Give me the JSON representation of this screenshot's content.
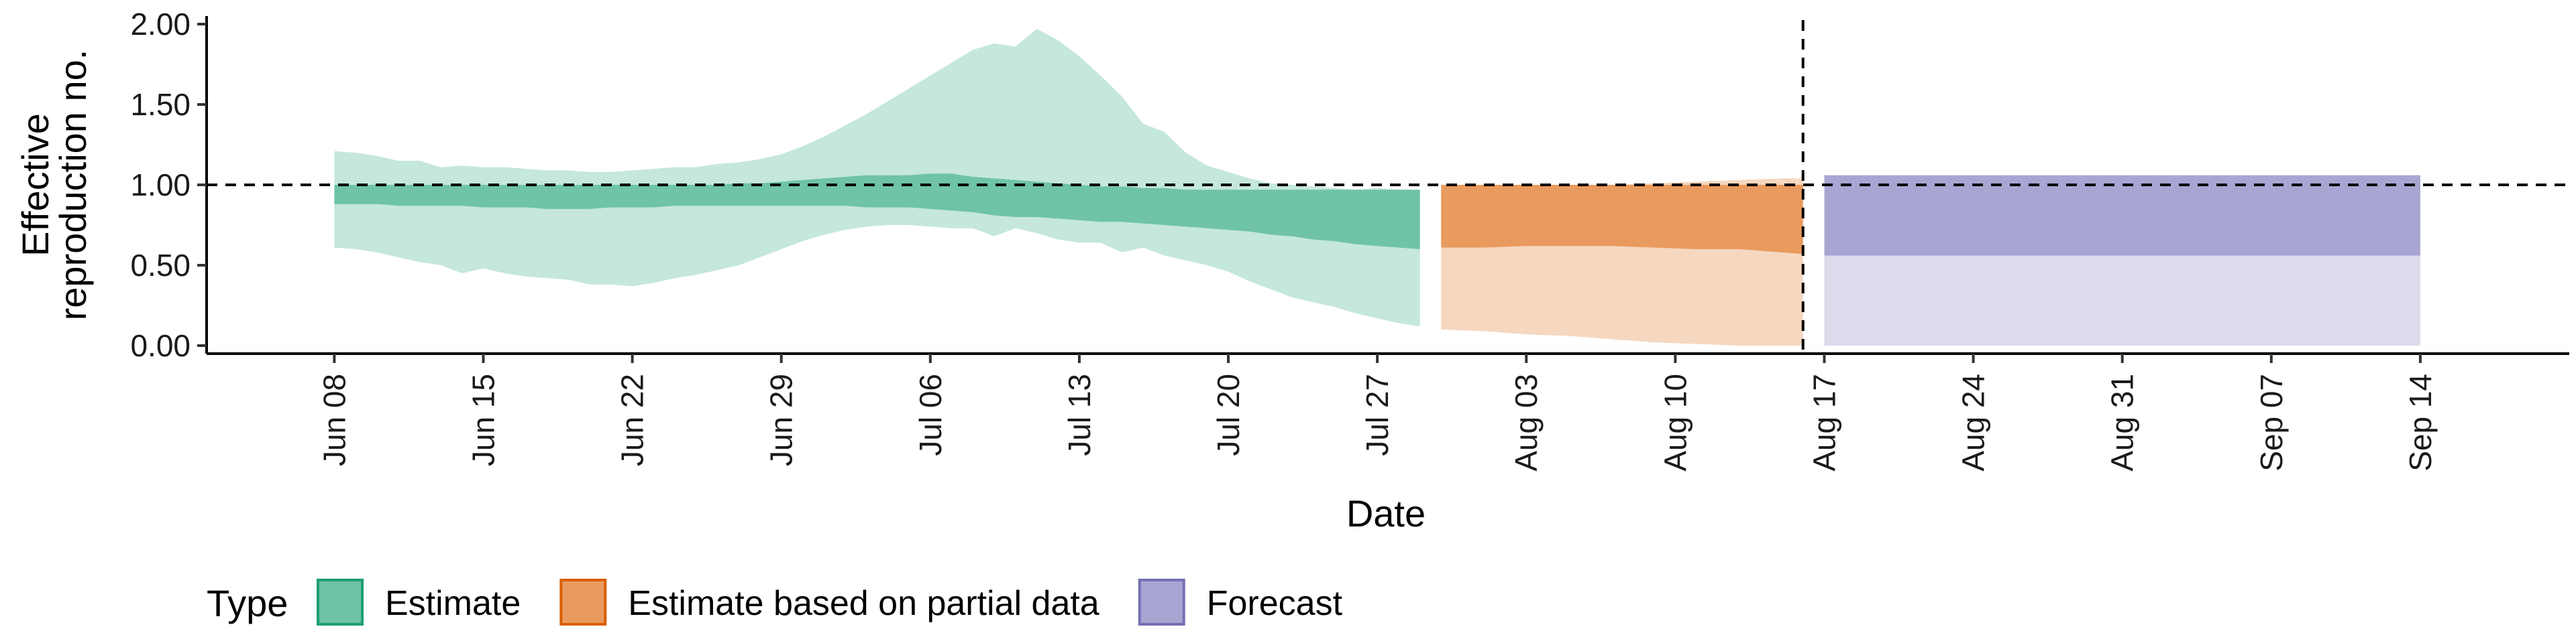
{
  "chart_data": {
    "type": "area",
    "xlabel": "Date",
    "ylabel_lines": [
      "Effective",
      "reproduction no."
    ],
    "ylim": [
      -0.05,
      2.05
    ],
    "xlim": [
      "2020-06-02",
      "2020-09-21"
    ],
    "y_ticks": [
      0,
      0.5,
      1,
      1.5,
      2
    ],
    "y_tick_labels": [
      "0.00",
      "0.50",
      "1.00",
      "1.50",
      "2.00"
    ],
    "x_ticks": [
      "2020-06-08",
      "2020-06-15",
      "2020-06-22",
      "2020-06-29",
      "2020-07-06",
      "2020-07-13",
      "2020-07-20",
      "2020-07-27",
      "2020-08-03",
      "2020-08-10",
      "2020-08-17",
      "2020-08-24",
      "2020-08-31",
      "2020-09-07",
      "2020-09-14"
    ],
    "x_tick_labels": [
      "Jun 08",
      "Jun 15",
      "Jun 22",
      "Jun 29",
      "Jul 06",
      "Jul 13",
      "Jul 20",
      "Jul 27",
      "Aug 03",
      "Aug 10",
      "Aug 17",
      "Aug 24",
      "Aug 31",
      "Sep 07",
      "Sep 14"
    ],
    "hline": 1.0,
    "vline": "2020-08-16",
    "grid": false,
    "legend": {
      "title": "Type",
      "position": "bottom-left",
      "items": [
        {
          "label": "Estimate",
          "fill": "#6fc3a6",
          "border": "#1b9e77"
        },
        {
          "label": "Estimate based on partial data",
          "fill": "#e99a5e",
          "border": "#d95f02"
        },
        {
          "label": "Forecast",
          "fill": "#a9a5d3",
          "border": "#7570b3"
        }
      ]
    },
    "series": [
      {
        "name": "Estimate",
        "outer_color": "#c5e7dc",
        "inner_color": "#6fc3a6",
        "x": [
          "2020-06-08",
          "2020-06-09",
          "2020-06-10",
          "2020-06-11",
          "2020-06-12",
          "2020-06-13",
          "2020-06-14",
          "2020-06-15",
          "2020-06-16",
          "2020-06-17",
          "2020-06-18",
          "2020-06-19",
          "2020-06-20",
          "2020-06-21",
          "2020-06-22",
          "2020-06-23",
          "2020-06-24",
          "2020-06-25",
          "2020-06-26",
          "2020-06-27",
          "2020-06-28",
          "2020-06-29",
          "2020-06-30",
          "2020-07-01",
          "2020-07-02",
          "2020-07-03",
          "2020-07-04",
          "2020-07-05",
          "2020-07-06",
          "2020-07-07",
          "2020-07-08",
          "2020-07-09",
          "2020-07-10",
          "2020-07-11",
          "2020-07-12",
          "2020-07-13",
          "2020-07-14",
          "2020-07-15",
          "2020-07-16",
          "2020-07-17",
          "2020-07-18",
          "2020-07-19",
          "2020-07-20",
          "2020-07-21",
          "2020-07-22",
          "2020-07-23",
          "2020-07-24",
          "2020-07-25",
          "2020-07-26",
          "2020-07-27",
          "2020-07-28",
          "2020-07-29"
        ],
        "upper_outer": [
          1.21,
          1.2,
          1.18,
          1.15,
          1.15,
          1.11,
          1.12,
          1.11,
          1.11,
          1.1,
          1.09,
          1.09,
          1.08,
          1.08,
          1.09,
          1.1,
          1.11,
          1.11,
          1.13,
          1.14,
          1.16,
          1.19,
          1.24,
          1.3,
          1.37,
          1.44,
          1.52,
          1.6,
          1.68,
          1.76,
          1.84,
          1.88,
          1.86,
          1.97,
          1.9,
          1.8,
          1.68,
          1.55,
          1.38,
          1.33,
          1.2,
          1.12,
          1.08,
          1.04,
          1.01,
          1.0,
          0.99,
          0.98,
          0.97,
          0.98,
          0.97,
          0.97
        ],
        "upper_inner": [
          1.0,
          1.0,
          1.0,
          1.0,
          1.0,
          1.0,
          1.0,
          1.0,
          1.0,
          1.0,
          1.0,
          1.0,
          1.0,
          1.0,
          1.0,
          1.0,
          1.0,
          1.0,
          1.0,
          1.01,
          1.01,
          1.02,
          1.03,
          1.04,
          1.05,
          1.06,
          1.06,
          1.06,
          1.07,
          1.07,
          1.05,
          1.04,
          1.03,
          1.02,
          1.01,
          1.0,
          0.99,
          0.99,
          0.98,
          0.98,
          0.97,
          0.97,
          0.97,
          0.97,
          0.97,
          0.97,
          0.97,
          0.97,
          0.97,
          0.97,
          0.97,
          0.97
        ],
        "lower_inner": [
          0.88,
          0.88,
          0.88,
          0.87,
          0.87,
          0.87,
          0.87,
          0.86,
          0.86,
          0.86,
          0.85,
          0.85,
          0.85,
          0.86,
          0.86,
          0.86,
          0.87,
          0.87,
          0.87,
          0.87,
          0.87,
          0.87,
          0.87,
          0.87,
          0.87,
          0.86,
          0.86,
          0.86,
          0.85,
          0.84,
          0.83,
          0.81,
          0.8,
          0.8,
          0.79,
          0.78,
          0.77,
          0.77,
          0.76,
          0.75,
          0.74,
          0.73,
          0.72,
          0.71,
          0.69,
          0.68,
          0.66,
          0.65,
          0.63,
          0.62,
          0.61,
          0.6
        ],
        "lower_outer": [
          0.61,
          0.6,
          0.58,
          0.55,
          0.52,
          0.5,
          0.45,
          0.48,
          0.45,
          0.43,
          0.42,
          0.41,
          0.38,
          0.38,
          0.37,
          0.39,
          0.42,
          0.44,
          0.47,
          0.5,
          0.55,
          0.6,
          0.65,
          0.69,
          0.72,
          0.74,
          0.75,
          0.75,
          0.74,
          0.73,
          0.73,
          0.68,
          0.73,
          0.7,
          0.66,
          0.64,
          0.64,
          0.58,
          0.61,
          0.56,
          0.53,
          0.5,
          0.46,
          0.4,
          0.35,
          0.3,
          0.27,
          0.24,
          0.2,
          0.17,
          0.14,
          0.12
        ]
      },
      {
        "name": "Estimate based on partial data",
        "outer_color": "#f6d7bf",
        "inner_color": "#e99a5e",
        "x": [
          "2020-07-30",
          "2020-08-01",
          "2020-08-03",
          "2020-08-05",
          "2020-08-07",
          "2020-08-09",
          "2020-08-11",
          "2020-08-13",
          "2020-08-15",
          "2020-08-16"
        ],
        "upper_outer": [
          1.0,
          1.0,
          1.0,
          1.0,
          1.0,
          1.01,
          1.02,
          1.03,
          1.04,
          1.04
        ],
        "upper_inner": [
          1.0,
          1.0,
          1.0,
          1.0,
          1.0,
          1.0,
          1.0,
          1.0,
          1.0,
          1.0
        ],
        "lower_inner": [
          0.61,
          0.61,
          0.62,
          0.62,
          0.62,
          0.61,
          0.6,
          0.6,
          0.58,
          0.57
        ],
        "lower_outer": [
          0.1,
          0.09,
          0.07,
          0.06,
          0.04,
          0.02,
          0.01,
          0.0,
          0.0,
          0.0
        ]
      },
      {
        "name": "Forecast",
        "outer_color": "#dcdbeb",
        "inner_color": "#a9a5d3",
        "x": [
          "2020-08-17",
          "2020-09-14"
        ],
        "upper_outer": [
          1.06,
          1.06
        ],
        "upper_inner": [
          1.06,
          1.06
        ],
        "lower_inner": [
          0.56,
          0.56
        ],
        "lower_outer": [
          0.0,
          0.0
        ]
      }
    ]
  }
}
